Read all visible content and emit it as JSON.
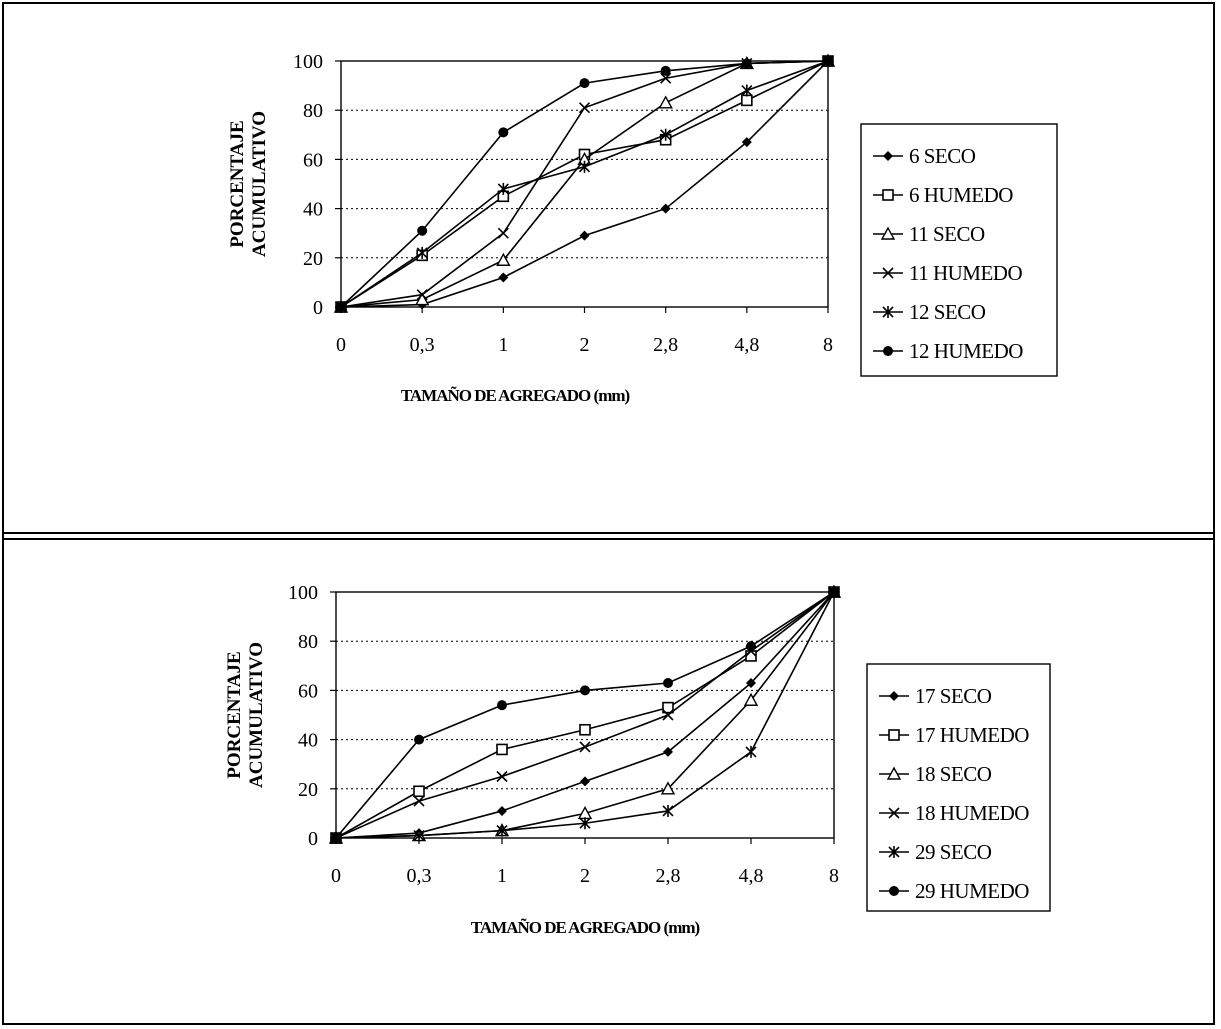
{
  "chart_data": [
    {
      "type": "line",
      "xlabel": "TAMAÑO DE AGREGADO (mm)",
      "ylabel": "PORCENTAJE ACUMULATIVO",
      "categories": [
        "0",
        "0,3",
        "1",
        "2",
        "2,8",
        "4,8",
        "8"
      ],
      "ylim": [
        0,
        100
      ],
      "yticks": [
        "0",
        "20",
        "40",
        "60",
        "80",
        "100"
      ],
      "grid": "horizontal dotted",
      "legend_position": "right",
      "series": [
        {
          "name": "6 SECO",
          "marker": "diamond",
          "values": [
            0,
            1,
            12,
            29,
            40,
            67,
            100
          ]
        },
        {
          "name": "6 HUMEDO",
          "marker": "square",
          "values": [
            0,
            21,
            45,
            62,
            68,
            84,
            100
          ]
        },
        {
          "name": "11 SECO",
          "marker": "triangle",
          "values": [
            0,
            3,
            19,
            60,
            83,
            99,
            100
          ]
        },
        {
          "name": "11 HUMEDO",
          "marker": "x",
          "values": [
            0,
            5,
            30,
            81,
            93,
            99,
            100
          ]
        },
        {
          "name": "12 SECO",
          "marker": "star",
          "values": [
            0,
            22,
            48,
            57,
            70,
            88,
            100
          ]
        },
        {
          "name": "12 HUMEDO",
          "marker": "circle",
          "values": [
            0,
            31,
            71,
            91,
            96,
            99,
            100
          ]
        }
      ]
    },
    {
      "type": "line",
      "xlabel": "TAMAÑO DE AGREGADO (mm)",
      "ylabel": "PORCENTAJE ACUMULATIVO",
      "categories": [
        "0",
        "0,3",
        "1",
        "2",
        "2,8",
        "4,8",
        "8"
      ],
      "ylim": [
        0,
        100
      ],
      "yticks": [
        "0",
        "20",
        "40",
        "60",
        "80",
        "100"
      ],
      "grid": "horizontal dotted",
      "legend_position": "right",
      "series": [
        {
          "name": "17 SECO",
          "marker": "diamond",
          "values": [
            0,
            2,
            11,
            23,
            35,
            63,
            100
          ]
        },
        {
          "name": "17 HUMEDO",
          "marker": "square",
          "values": [
            0,
            19,
            36,
            44,
            53,
            74,
            100
          ]
        },
        {
          "name": "18 SECO",
          "marker": "triangle",
          "values": [
            0,
            1,
            3,
            10,
            20,
            56,
            100
          ]
        },
        {
          "name": "18 HUMEDO",
          "marker": "x",
          "values": [
            0,
            15,
            25,
            37,
            50,
            76,
            100
          ]
        },
        {
          "name": "29 SECO",
          "marker": "star",
          "values": [
            0,
            1,
            3,
            6,
            11,
            35,
            100
          ]
        },
        {
          "name": "29 HUMEDO",
          "marker": "circle",
          "values": [
            0,
            40,
            54,
            60,
            63,
            78,
            100
          ]
        }
      ]
    }
  ]
}
